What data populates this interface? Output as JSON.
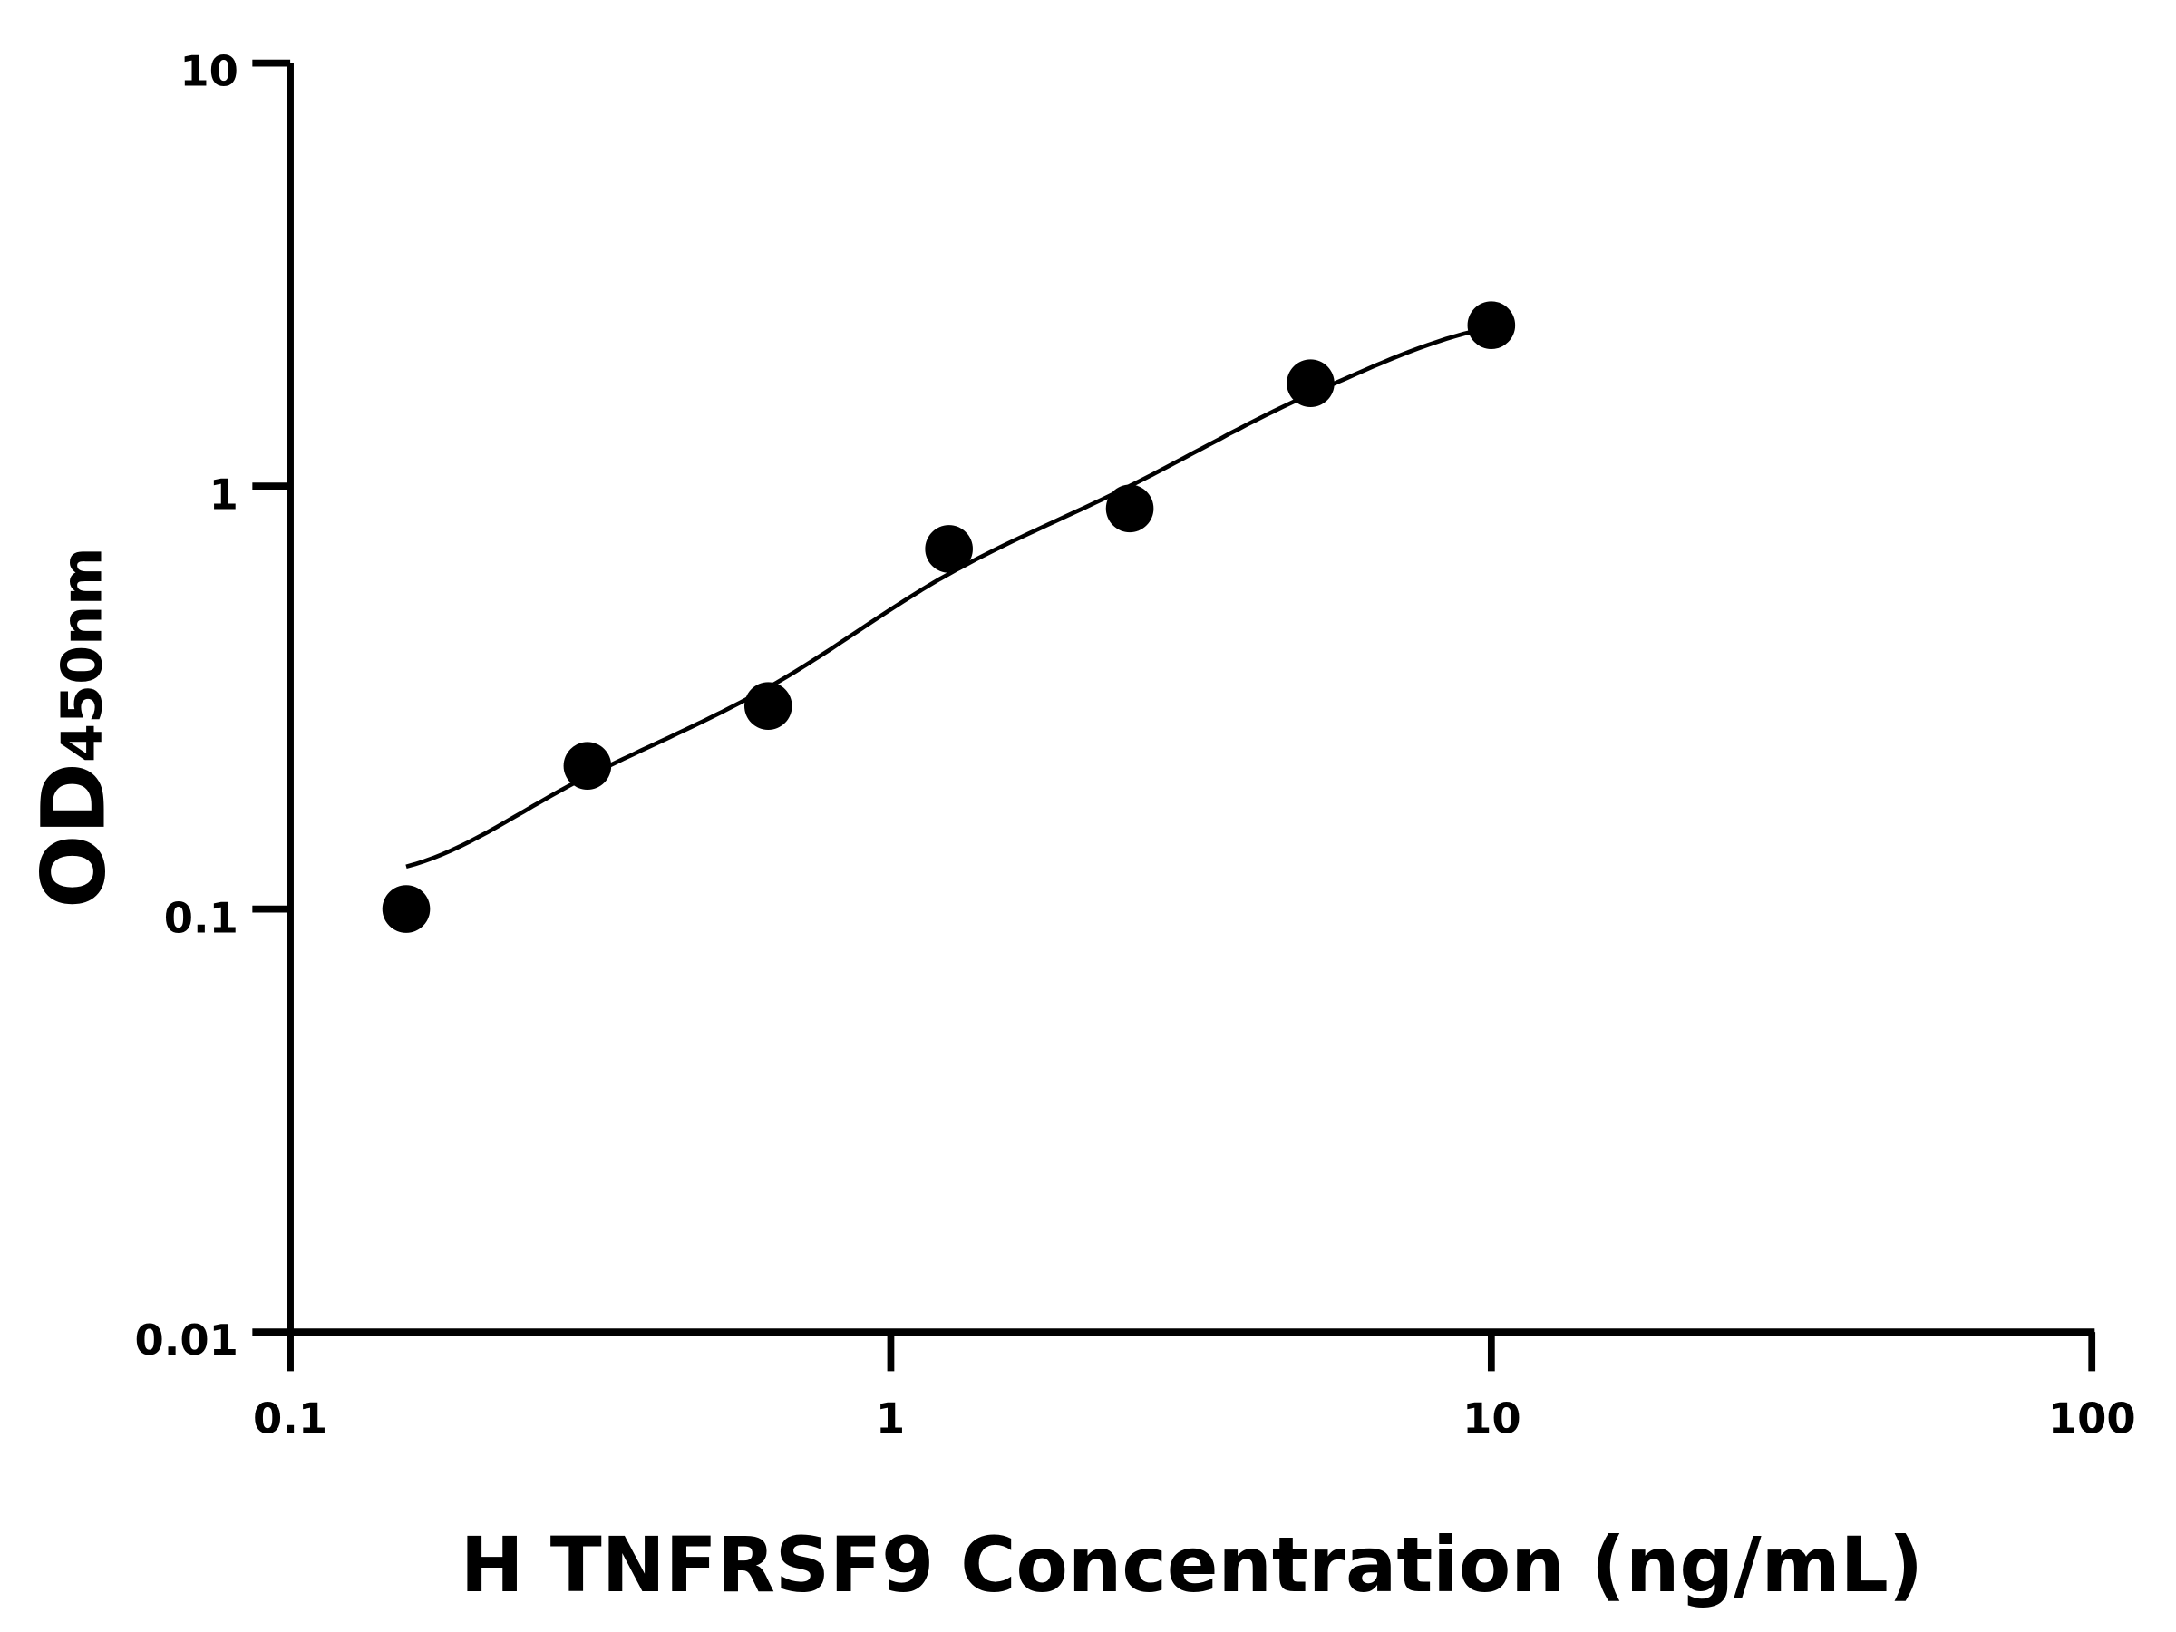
{
  "chart_data": {
    "type": "scatter",
    "title": "",
    "xlabel": "H TNFRSF9 Concentration (ng/mL)",
    "ylabel": {
      "main": "OD",
      "subscript": "450nm"
    },
    "x_scale": "log",
    "y_scale": "log",
    "xlim": [
      0.1,
      100
    ],
    "ylim": [
      0.01,
      10
    ],
    "x_ticks": [
      "0.1",
      "1",
      "10",
      "100"
    ],
    "y_ticks": [
      "0.01",
      "0.1",
      "1",
      "10"
    ],
    "grid": false,
    "legend": "none",
    "points": {
      "x": [
        0.156,
        0.3125,
        0.625,
        1.25,
        2.5,
        5,
        10
      ],
      "y": [
        0.1,
        0.218,
        0.302,
        0.71,
        0.885,
        1.75,
        2.4
      ]
    },
    "fit_curve": {
      "x": [
        0.156,
        0.3125,
        0.625,
        1.25,
        2.5,
        5,
        10
      ],
      "y": [
        0.126,
        0.206,
        0.334,
        0.62,
        1.0,
        1.65,
        2.37
      ]
    },
    "colors": {
      "marker": "#000000",
      "line": "#000000",
      "axis": "#000000"
    }
  }
}
